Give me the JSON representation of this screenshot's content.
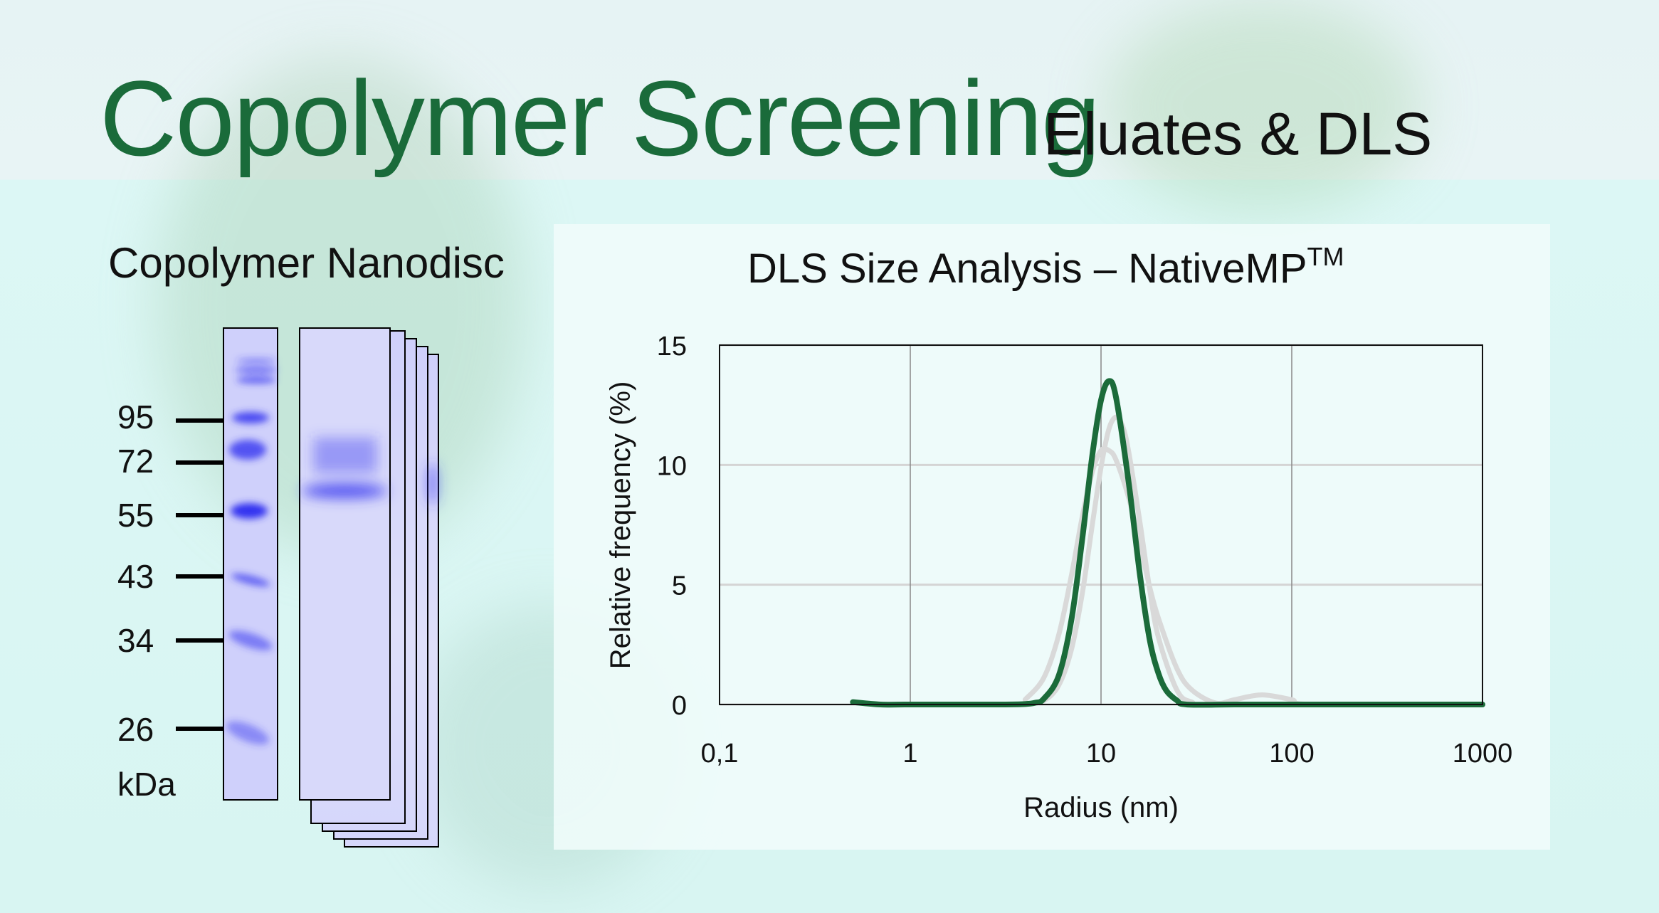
{
  "header": {
    "title": "Copolymer Screening",
    "subtitle": "Eluates & DLS"
  },
  "gel": {
    "title": "Copolymer Nanodisc",
    "markers": [
      "95",
      "72",
      "55",
      "43",
      "34",
      "26"
    ],
    "unit": "kDa"
  },
  "colors": {
    "title_green": "#1a6b3a",
    "series_green": "#1b6b3a",
    "series_gray": "#d9d9d9",
    "gel_blue": "#2b2bf0"
  },
  "chart_data": {
    "type": "line",
    "title": "DLS Size Analysis – NativeMP",
    "title_superscript": "TM",
    "xlabel": "Radius (nm)",
    "ylabel": "Relative frequency (%)",
    "xscale": "log",
    "xlim": [
      0.1,
      1000
    ],
    "ylim": [
      0,
      15
    ],
    "xticks": [
      "0,1",
      "1",
      "10",
      "100",
      "1000"
    ],
    "yticks": [
      "0",
      "5",
      "10",
      "15"
    ],
    "grid": true,
    "series": [
      {
        "color": "#d9d9d9",
        "x": [
          4,
          5,
          6,
          7,
          8,
          9,
          10,
          11,
          12,
          14,
          16,
          18,
          20,
          25,
          30,
          40,
          50,
          70,
          100,
          130,
          1000
        ],
        "y": [
          0.2,
          1.1,
          2.9,
          5.4,
          7.9,
          9.7,
          10.6,
          10.6,
          10.2,
          8.6,
          6.7,
          4.9,
          3.6,
          1.5,
          0.6,
          0.06,
          0.2,
          0.4,
          0.2,
          0,
          0
        ]
      },
      {
        "color": "#d9d9d9",
        "x": [
          4,
          5,
          6,
          7,
          8,
          9,
          10,
          11,
          12,
          13,
          14,
          16,
          18,
          20,
          25,
          30,
          40,
          1000
        ],
        "y": [
          0,
          0.16,
          0.8,
          2.3,
          4.7,
          7.5,
          9.9,
          11.5,
          12,
          11.6,
          10.5,
          7.6,
          4.8,
          2.8,
          0.6,
          0.1,
          0,
          0
        ]
      },
      {
        "color": "#1b6b3a",
        "x": [
          0.5,
          0.7,
          1,
          2,
          3,
          4,
          4.5,
          5,
          6,
          7,
          8,
          9,
          10,
          11,
          12,
          14,
          16,
          18,
          20,
          22,
          25,
          28,
          50,
          100,
          1000
        ],
        "y": [
          0.1,
          0,
          0,
          0,
          0,
          0.02,
          0.07,
          0.23,
          1.2,
          3.55,
          7,
          10.4,
          12.7,
          13.5,
          12.8,
          9.2,
          5.4,
          2.7,
          1.3,
          0.58,
          0.17,
          0,
          0,
          0,
          0
        ]
      }
    ]
  }
}
